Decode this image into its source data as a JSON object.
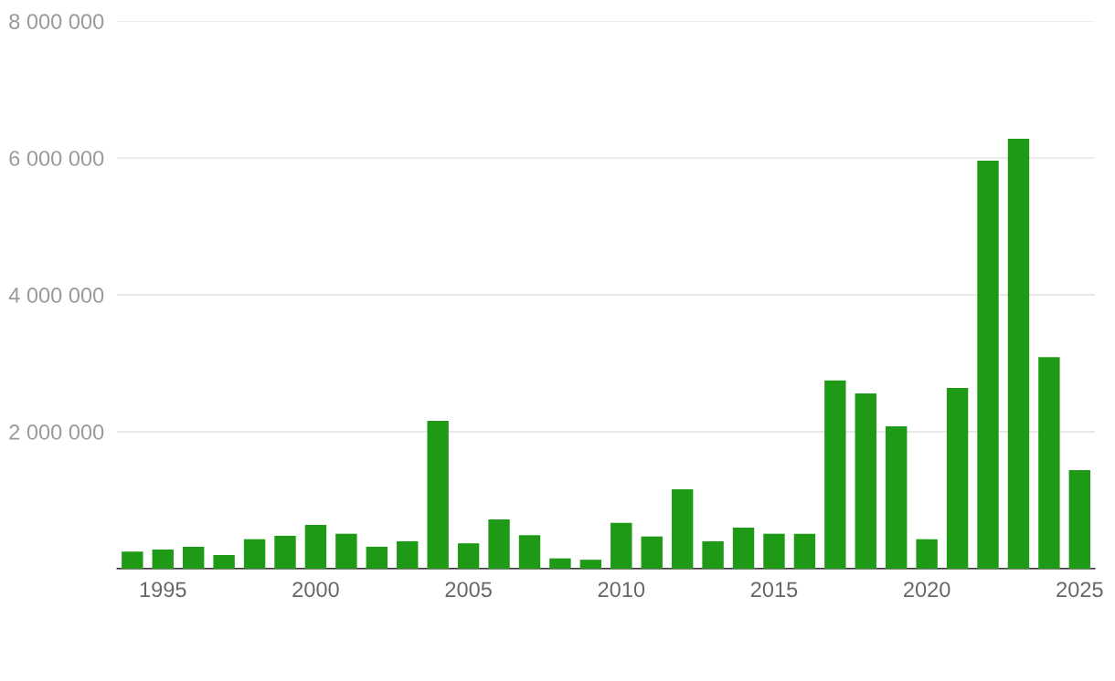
{
  "chart_data": {
    "type": "bar",
    "x": [
      1994,
      1995,
      1996,
      1997,
      1998,
      1999,
      2000,
      2001,
      2002,
      2003,
      2004,
      2005,
      2006,
      2007,
      2008,
      2009,
      2010,
      2011,
      2012,
      2013,
      2014,
      2015,
      2016,
      2017,
      2018,
      2019,
      2020,
      2021,
      2022,
      2023,
      2024,
      2025
    ],
    "values": [
      250000,
      280000,
      320000,
      200000,
      430000,
      480000,
      640000,
      510000,
      320000,
      400000,
      2160000,
      370000,
      720000,
      490000,
      150000,
      130000,
      670000,
      470000,
      1160000,
      400000,
      600000,
      510000,
      510000,
      2750000,
      2560000,
      2080000,
      430000,
      2640000,
      5960000,
      6280000,
      3090000,
      1440000
    ],
    "color": "#1f9a16",
    "xlim": [
      1993.5,
      2025.5
    ],
    "xticks": [
      1995,
      2000,
      2005,
      2010,
      2015,
      2020,
      2025
    ],
    "ylim": [
      0,
      8000000
    ],
    "yticks": [
      {
        "value": 0,
        "label": null
      },
      {
        "value": 2000000,
        "label": "2 000 000"
      },
      {
        "value": 4000000,
        "label": "4 000 000"
      },
      {
        "value": 6000000,
        "label": "6 000 000"
      },
      {
        "value": 8000000,
        "label": "8 000 000"
      }
    ],
    "grid": "y"
  }
}
